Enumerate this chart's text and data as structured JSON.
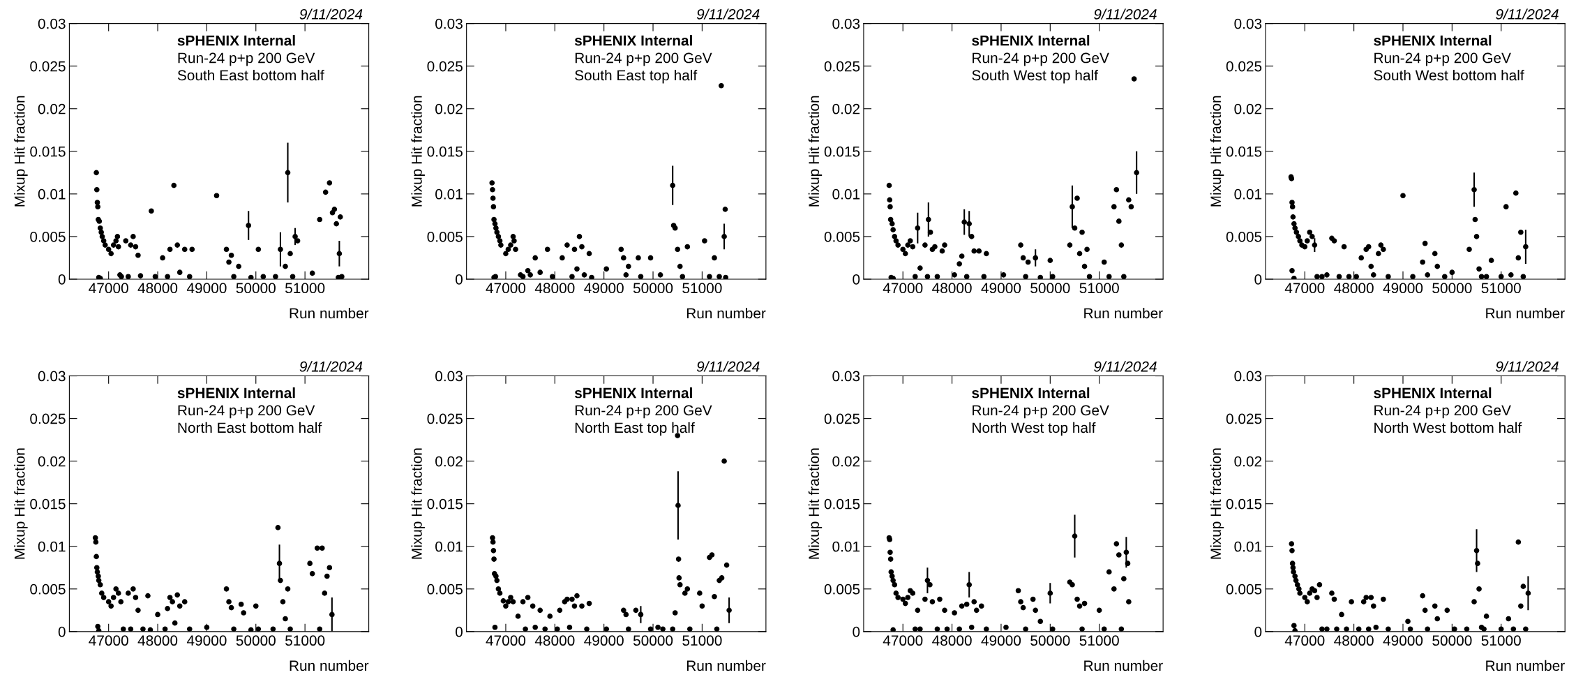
{
  "chart_data": [
    {
      "type": "scatter",
      "xlabel": "Run number",
      "ylabel": "Mixup Hit fraction",
      "marker": "circle",
      "color": "#000000",
      "annotations": [
        "9/11/2024",
        "sPHENIX Internal",
        "Run-24 p+p 200 GeV",
        "South East bottom half"
      ],
      "xlim": [
        46200,
        52300
      ],
      "xticks": [
        47000,
        48000,
        49000,
        50000,
        51000
      ],
      "ylim": [
        0,
        0.03
      ],
      "yticks": [
        0,
        0.005,
        0.01,
        0.015,
        0.02,
        0.025,
        0.03
      ],
      "x": [
        46750,
        46760,
        46770,
        46780,
        46790,
        46810,
        46830,
        46850,
        46870,
        46900,
        46930,
        46800,
        46830,
        47000,
        47050,
        47100,
        47150,
        47180,
        47200,
        47230,
        47260,
        47350,
        47400,
        47450,
        47500,
        47550,
        47600,
        47650,
        47870,
        47950,
        48100,
        48200,
        48250,
        48330,
        48400,
        48450,
        48550,
        48650,
        48700,
        49200,
        49400,
        49450,
        49500,
        49550,
        49650,
        49850,
        49900,
        50050,
        50150,
        50400,
        50500,
        50650,
        50600,
        50700,
        50750,
        50800,
        50850,
        51150,
        51300,
        51420,
        51500,
        51560,
        51600,
        51640,
        51680,
        51720,
        51750,
        51700
      ],
      "values": [
        0.0125,
        0.0105,
        0.009,
        0.0085,
        0.007,
        0.0068,
        0.006,
        0.0055,
        0.005,
        0.0045,
        0.004,
        0.0002,
        0.0001,
        0.0035,
        0.003,
        0.004,
        0.0045,
        0.005,
        0.0038,
        0.0005,
        0.0003,
        0.0045,
        0.0003,
        0.004,
        0.005,
        0.0038,
        0.0028,
        0.0004,
        0.008,
        0.0003,
        0.0025,
        0.0003,
        0.0035,
        0.011,
        0.004,
        0.0008,
        0.0035,
        0.0003,
        0.0035,
        0.0098,
        0.0035,
        0.002,
        0.0028,
        0.0003,
        0.0015,
        0.0063,
        0.0002,
        0.0035,
        0.0003,
        0.0003,
        0.0035,
        0.0125,
        0.0015,
        0.003,
        0.0003,
        0.005,
        0.0045,
        0.0007,
        0.007,
        0.0102,
        0.0113,
        0.0078,
        0.0082,
        0.0065,
        0.0002,
        0.0073,
        0.0003,
        0.003
      ],
      "errors": [
        null,
        null,
        null,
        null,
        null,
        null,
        null,
        null,
        null,
        null,
        null,
        null,
        null,
        null,
        null,
        null,
        null,
        null,
        null,
        null,
        null,
        null,
        null,
        null,
        null,
        null,
        null,
        null,
        null,
        null,
        null,
        null,
        null,
        null,
        null,
        null,
        null,
        null,
        null,
        null,
        null,
        null,
        null,
        null,
        null,
        0.0017,
        null,
        null,
        null,
        null,
        0.002,
        0.0035,
        null,
        null,
        null,
        0.001,
        null,
        null,
        null,
        null,
        null,
        null,
        null,
        null,
        null,
        null,
        null,
        0.0015
      ]
    },
    {
      "type": "scatter",
      "xlabel": "Run number",
      "ylabel": "Mixup Hit fraction",
      "marker": "circle",
      "color": "#000000",
      "annotations": [
        "9/11/2024",
        "sPHENIX Internal",
        "Run-24 p+p 200 GeV",
        "South East top half"
      ],
      "xlim": [
        46200,
        52300
      ],
      "xticks": [
        47000,
        48000,
        49000,
        50000,
        51000
      ],
      "ylim": [
        0,
        0.03
      ],
      "yticks": [
        0,
        0.005,
        0.01,
        0.015,
        0.02,
        0.025,
        0.03
      ],
      "x": [
        46720,
        46730,
        46740,
        46750,
        46760,
        46780,
        46800,
        46820,
        46850,
        46880,
        46900,
        46760,
        46790,
        47000,
        47050,
        47100,
        47150,
        47170,
        47200,
        47300,
        47350,
        47450,
        47500,
        47600,
        47700,
        47850,
        47950,
        48150,
        48250,
        48350,
        48400,
        48450,
        48500,
        48550,
        48600,
        48700,
        48750,
        49050,
        49350,
        49400,
        49450,
        49500,
        49700,
        49750,
        49950,
        50150,
        50400,
        50420,
        50450,
        50500,
        50550,
        50600,
        50700,
        51050,
        51150,
        51250,
        51350,
        51390,
        51450,
        51470,
        51480
      ],
      "values": [
        0.0113,
        0.0105,
        0.0095,
        0.0085,
        0.007,
        0.0065,
        0.006,
        0.0055,
        0.005,
        0.0045,
        0.004,
        0.0002,
        0.0003,
        0.003,
        0.0035,
        0.004,
        0.005,
        0.0045,
        0.0035,
        0.0005,
        0.0003,
        0.001,
        0.0005,
        0.0025,
        0.0008,
        0.0035,
        0.0003,
        0.0025,
        0.004,
        0.0003,
        0.0035,
        0.0012,
        0.005,
        0.0038,
        0.0005,
        0.003,
        0.0002,
        0.0012,
        0.0035,
        0.0025,
        0.0005,
        0.0015,
        0.0025,
        0.0003,
        0.0025,
        0.0005,
        0.011,
        0.0063,
        0.006,
        0.0035,
        0.0015,
        0.0003,
        0.0038,
        0.0045,
        0.0003,
        0.0025,
        0.0003,
        0.0227,
        0.005,
        0.0082,
        0.0002
      ],
      "errors": [
        null,
        null,
        null,
        null,
        null,
        null,
        null,
        null,
        null,
        null,
        null,
        null,
        null,
        null,
        null,
        null,
        null,
        null,
        null,
        null,
        null,
        null,
        null,
        null,
        null,
        null,
        null,
        null,
        null,
        null,
        null,
        null,
        null,
        null,
        null,
        null,
        null,
        null,
        null,
        null,
        null,
        null,
        null,
        null,
        null,
        null,
        0.0023,
        null,
        null,
        null,
        null,
        null,
        null,
        null,
        null,
        null,
        null,
        null,
        0.0015,
        null,
        null
      ]
    },
    {
      "type": "scatter",
      "xlabel": "Run number",
      "ylabel": "Mixup Hit fraction",
      "marker": "circle",
      "color": "#000000",
      "annotations": [
        "9/11/2024",
        "sPHENIX Internal",
        "Run-24 p+p 200 GeV",
        "South West top half"
      ],
      "xlim": [
        46200,
        52300
      ],
      "xticks": [
        47000,
        48000,
        49000,
        50000,
        51000
      ],
      "ylim": [
        0,
        0.03
      ],
      "yticks": [
        0,
        0.005,
        0.01,
        0.015,
        0.02,
        0.025,
        0.03
      ],
      "x": [
        46720,
        46730,
        46740,
        46750,
        46780,
        46800,
        46830,
        46860,
        46900,
        46760,
        46800,
        47000,
        47050,
        47100,
        47150,
        47200,
        47250,
        47300,
        47350,
        47450,
        47500,
        47520,
        47560,
        47600,
        47650,
        47700,
        47800,
        47850,
        48050,
        48150,
        48200,
        48250,
        48300,
        48350,
        48400,
        48450,
        48550,
        48650,
        48700,
        49050,
        49400,
        49450,
        49500,
        49550,
        49700,
        49800,
        50000,
        50050,
        50400,
        50450,
        50500,
        50550,
        50600,
        50650,
        50700,
        50750,
        50800,
        51100,
        51200,
        51300,
        51350,
        51400,
        51450,
        51500,
        51600,
        51650,
        51710,
        51760
      ],
      "values": [
        0.011,
        0.0093,
        0.0085,
        0.007,
        0.0065,
        0.0058,
        0.005,
        0.0045,
        0.004,
        0.0002,
        0.0001,
        0.0035,
        0.003,
        0.004,
        0.0045,
        0.0038,
        0.0003,
        0.006,
        0.0013,
        0.004,
        0.0003,
        0.007,
        0.0055,
        0.0035,
        0.0038,
        0.0003,
        0.0033,
        0.004,
        0.0005,
        0.0018,
        0.0027,
        0.0067,
        0.0003,
        0.0065,
        0.005,
        0.0033,
        0.0033,
        0.0003,
        0.003,
        0.0005,
        0.004,
        0.0025,
        0.0003,
        0.002,
        0.0025,
        0.0002,
        0.0022,
        0.0003,
        0.004,
        0.0085,
        0.006,
        0.0095,
        0.003,
        0.0055,
        0.0015,
        0.0035,
        0.0003,
        0.002,
        0.0003,
        0.0085,
        0.0105,
        0.0068,
        0.004,
        0.0003,
        0.0093,
        0.0085,
        0.0235,
        0.0125
      ],
      "errors": [
        null,
        null,
        null,
        null,
        null,
        null,
        null,
        null,
        null,
        null,
        null,
        null,
        null,
        null,
        null,
        null,
        null,
        0.0018,
        null,
        null,
        null,
        0.002,
        null,
        null,
        null,
        null,
        null,
        null,
        null,
        null,
        null,
        0.0015,
        null,
        0.0015,
        null,
        null,
        null,
        null,
        null,
        null,
        null,
        null,
        null,
        null,
        0.001,
        null,
        null,
        null,
        null,
        0.0025,
        null,
        null,
        null,
        null,
        null,
        null,
        null,
        null,
        null,
        null,
        null,
        null,
        null,
        null,
        null,
        null,
        null,
        0.0025
      ]
    },
    {
      "type": "scatter",
      "xlabel": "Run number",
      "ylabel": "Mixup Hit fraction",
      "marker": "circle",
      "color": "#000000",
      "annotations": [
        "9/11/2024",
        "sPHENIX Internal",
        "Run-24 p+p 200 GeV",
        "South West bottom half"
      ],
      "xlim": [
        46200,
        52300
      ],
      "xticks": [
        47000,
        48000,
        49000,
        50000,
        51000
      ],
      "ylim": [
        0,
        0.03
      ],
      "yticks": [
        0,
        0.005,
        0.01,
        0.015,
        0.02,
        0.025,
        0.03
      ],
      "x": [
        46720,
        46730,
        46740,
        46750,
        46760,
        46780,
        46800,
        46830,
        46870,
        46900,
        46940,
        46740,
        46780,
        47000,
        47050,
        47100,
        47150,
        47200,
        47250,
        47350,
        47450,
        47550,
        47600,
        47700,
        47800,
        47900,
        48050,
        48150,
        48250,
        48300,
        48350,
        48400,
        48500,
        48550,
        48600,
        48700,
        49000,
        49200,
        49400,
        49450,
        49500,
        49650,
        49700,
        49850,
        50000,
        50350,
        50450,
        50470,
        50500,
        50550,
        50600,
        50700,
        50800,
        51000,
        51100,
        51200,
        51300,
        51350,
        51400,
        51450,
        51500
      ],
      "values": [
        0.012,
        0.0118,
        0.009,
        0.0085,
        0.0073,
        0.0065,
        0.006,
        0.0055,
        0.005,
        0.0045,
        0.004,
        0.001,
        0.0001,
        0.0038,
        0.0045,
        0.0055,
        0.005,
        0.004,
        0.0003,
        0.0003,
        0.0005,
        0.0048,
        0.0045,
        0.0003,
        0.0038,
        0.0003,
        0.0003,
        0.0025,
        0.0035,
        0.0038,
        0.0015,
        0.0005,
        0.003,
        0.004,
        0.0035,
        0.0003,
        0.0098,
        0.0003,
        0.002,
        0.0042,
        0.0005,
        0.003,
        0.0015,
        0.0003,
        0.0008,
        0.0035,
        0.0105,
        0.007,
        0.005,
        0.0012,
        0.0003,
        0.0003,
        0.0022,
        0.0003,
        0.0085,
        0.0005,
        0.0101,
        0.0025,
        0.0055,
        0.0003,
        0.0038
      ],
      "errors": [
        null,
        null,
        null,
        null,
        null,
        null,
        null,
        null,
        null,
        null,
        null,
        null,
        null,
        null,
        null,
        null,
        null,
        0.0008,
        null,
        null,
        null,
        null,
        null,
        null,
        null,
        null,
        null,
        null,
        null,
        null,
        null,
        null,
        null,
        null,
        null,
        null,
        null,
        null,
        null,
        null,
        null,
        null,
        null,
        null,
        null,
        null,
        0.002,
        null,
        null,
        null,
        null,
        null,
        null,
        null,
        null,
        null,
        null,
        null,
        null,
        null,
        0.002
      ]
    },
    {
      "type": "scatter",
      "xlabel": "Run number",
      "ylabel": "Mixup Hit fraction",
      "marker": "circle",
      "color": "#000000",
      "annotations": [
        "9/11/2024",
        "sPHENIX Internal",
        "Run-24 p+p 200 GeV",
        "North East bottom half"
      ],
      "xlim": [
        46200,
        52300
      ],
      "xticks": [
        47000,
        48000,
        49000,
        50000,
        51000
      ],
      "ylim": [
        0,
        0.03
      ],
      "yticks": [
        0,
        0.005,
        0.01,
        0.015,
        0.02,
        0.025,
        0.03
      ],
      "x": [
        46730,
        46740,
        46750,
        46760,
        46770,
        46790,
        46800,
        46830,
        46860,
        46900,
        46780,
        46800,
        47000,
        47050,
        47100,
        47150,
        47200,
        47250,
        47300,
        47400,
        47450,
        47500,
        47550,
        47600,
        47700,
        47800,
        47850,
        48000,
        48150,
        48200,
        48250,
        48300,
        48350,
        48400,
        48450,
        48550,
        48650,
        49000,
        49400,
        49450,
        49500,
        49550,
        49700,
        49750,
        49900,
        50000,
        50050,
        50350,
        50450,
        50480,
        50500,
        50550,
        50600,
        50650,
        50700,
        51100,
        51150,
        51250,
        51300,
        51350,
        51400,
        51450,
        51500,
        51550
      ],
      "values": [
        0.011,
        0.0105,
        0.0088,
        0.0075,
        0.007,
        0.0065,
        0.006,
        0.0055,
        0.0045,
        0.004,
        0.0006,
        0.0001,
        0.0035,
        0.003,
        0.004,
        0.005,
        0.0045,
        0.0035,
        0.0003,
        0.0045,
        0.0003,
        0.005,
        0.004,
        0.0025,
        0.0003,
        0.0042,
        0.0002,
        0.002,
        0.0003,
        0.0027,
        0.004,
        0.0035,
        0.001,
        0.0043,
        0.003,
        0.0035,
        0.0003,
        0.0005,
        0.005,
        0.0035,
        0.0028,
        0.0003,
        0.0032,
        0.0022,
        0.0002,
        0.003,
        0.0003,
        0.0003,
        0.0122,
        0.008,
        0.006,
        0.0035,
        0.0015,
        0.005,
        0.0003,
        0.008,
        0.0068,
        0.0098,
        0.0003,
        0.0098,
        0.0045,
        0.0065,
        0.0075,
        0.002
      ],
      "errors": [
        null,
        null,
        null,
        null,
        null,
        null,
        null,
        null,
        null,
        null,
        null,
        null,
        null,
        null,
        null,
        null,
        null,
        null,
        null,
        null,
        null,
        null,
        null,
        null,
        null,
        null,
        null,
        null,
        null,
        null,
        null,
        null,
        null,
        null,
        null,
        null,
        null,
        null,
        null,
        null,
        null,
        null,
        null,
        null,
        null,
        null,
        null,
        null,
        null,
        0.0022,
        null,
        null,
        null,
        null,
        null,
        null,
        null,
        null,
        null,
        null,
        null,
        null,
        null,
        0.002
      ]
    },
    {
      "type": "scatter",
      "xlabel": "Run number",
      "ylabel": "Mixup Hit fraction",
      "marker": "circle",
      "color": "#000000",
      "annotations": [
        "9/11/2024",
        "sPHENIX Internal",
        "Run-24 p+p 200 GeV",
        "North East top half"
      ],
      "xlim": [
        46200,
        52300
      ],
      "xticks": [
        47000,
        48000,
        49000,
        50000,
        51000
      ],
      "ylim": [
        0,
        0.03
      ],
      "yticks": [
        0,
        0.005,
        0.01,
        0.015,
        0.02,
        0.025,
        0.03
      ],
      "x": [
        46730,
        46740,
        46750,
        46760,
        46770,
        46800,
        46820,
        46850,
        46880,
        46780,
        46950,
        47000,
        47050,
        47100,
        47150,
        47250,
        47350,
        47400,
        47450,
        47550,
        47600,
        47700,
        47800,
        47900,
        48050,
        48100,
        48200,
        48250,
        48300,
        48350,
        48400,
        48450,
        48550,
        48650,
        48700,
        49050,
        49400,
        49450,
        49500,
        49650,
        49750,
        49950,
        50100,
        50200,
        50400,
        50450,
        50500,
        50510,
        50520,
        50530,
        50550,
        50650,
        50700,
        50750,
        50950,
        51000,
        51150,
        51200,
        51250,
        51300,
        51350,
        51400,
        51450,
        51500,
        51550
      ],
      "values": [
        0.011,
        0.0105,
        0.0095,
        0.0085,
        0.0068,
        0.0065,
        0.006,
        0.005,
        0.0045,
        0.0005,
        0.0036,
        0.003,
        0.0035,
        0.004,
        0.0035,
        0.0018,
        0.0035,
        0.0003,
        0.004,
        0.003,
        0.0005,
        0.0025,
        0.0003,
        0.0018,
        0.0003,
        0.0025,
        0.0035,
        0.0038,
        0.0005,
        0.0038,
        0.003,
        0.0042,
        0.003,
        0.0003,
        0.0033,
        0.0003,
        0.0025,
        0.002,
        0.0003,
        0.0025,
        0.002,
        0.0003,
        0.0005,
        0.0003,
        0.0003,
        0.0022,
        0.023,
        0.0148,
        0.0085,
        0.0063,
        0.0055,
        0.0045,
        0.005,
        0.0003,
        0.0045,
        0.003,
        0.0087,
        0.009,
        0.0041,
        0.0003,
        0.006,
        0.0063,
        0.02,
        0.0078,
        0.0025
      ],
      "errors": [
        null,
        null,
        null,
        null,
        null,
        null,
        null,
        null,
        null,
        null,
        null,
        null,
        null,
        null,
        null,
        null,
        null,
        null,
        null,
        null,
        null,
        null,
        null,
        null,
        null,
        null,
        null,
        null,
        null,
        null,
        null,
        null,
        null,
        null,
        null,
        null,
        null,
        null,
        null,
        null,
        0.001,
        null,
        null,
        null,
        null,
        null,
        null,
        0.004,
        null,
        null,
        null,
        null,
        null,
        null,
        null,
        null,
        null,
        null,
        null,
        null,
        null,
        null,
        null,
        null,
        0.0015
      ]
    },
    {
      "type": "scatter",
      "xlabel": "Run number",
      "ylabel": "Mixup Hit fraction",
      "marker": "circle",
      "color": "#000000",
      "annotations": [
        "9/11/2024",
        "sPHENIX Internal",
        "Run-24 p+p 200 GeV",
        "North West top half"
      ],
      "xlim": [
        46200,
        52300
      ],
      "xticks": [
        47000,
        48000,
        49000,
        50000,
        51000
      ],
      "ylim": [
        0,
        0.03
      ],
      "yticks": [
        0,
        0.005,
        0.01,
        0.015,
        0.02,
        0.025,
        0.03
      ],
      "x": [
        46720,
        46730,
        46740,
        46750,
        46760,
        46780,
        46800,
        46830,
        46860,
        46900,
        46800,
        47000,
        47050,
        47100,
        47150,
        47200,
        47250,
        47300,
        47350,
        47450,
        47500,
        47550,
        47600,
        47700,
        47750,
        47850,
        47900,
        48050,
        48150,
        48200,
        48300,
        48350,
        48400,
        48450,
        48500,
        48600,
        48700,
        49100,
        49350,
        49400,
        49450,
        49500,
        49650,
        49700,
        49800,
        50000,
        50050,
        50400,
        50450,
        50500,
        50550,
        50600,
        50650,
        50700,
        51000,
        51100,
        51200,
        51300,
        51350,
        51400,
        51450,
        51500,
        51550,
        51580,
        51600
      ],
      "values": [
        0.011,
        0.0108,
        0.0093,
        0.0085,
        0.007,
        0.0065,
        0.006,
        0.0055,
        0.0045,
        0.004,
        0.0002,
        0.0038,
        0.0033,
        0.004,
        0.0048,
        0.0045,
        0.0003,
        0.0025,
        0.0003,
        0.0038,
        0.006,
        0.0055,
        0.0035,
        0.0003,
        0.0038,
        0.0025,
        0.0003,
        0.0022,
        0.0003,
        0.003,
        0.0032,
        0.0055,
        0.0005,
        0.0035,
        0.0025,
        0.003,
        0.0003,
        0.0005,
        0.0048,
        0.0035,
        0.0028,
        0.0003,
        0.0038,
        0.0025,
        0.0012,
        0.0045,
        0.0003,
        0.0058,
        0.0055,
        0.0112,
        0.0038,
        0.003,
        0.0003,
        0.0033,
        0.0025,
        0.0003,
        0.007,
        0.005,
        0.0103,
        0.009,
        0.0003,
        0.0062,
        0.0093,
        0.008,
        0.0035
      ],
      "errors": [
        null,
        null,
        null,
        null,
        null,
        null,
        null,
        null,
        null,
        null,
        null,
        null,
        null,
        null,
        null,
        null,
        null,
        null,
        null,
        null,
        0.0015,
        null,
        null,
        null,
        null,
        null,
        null,
        null,
        null,
        null,
        null,
        0.0015,
        null,
        null,
        null,
        null,
        null,
        null,
        null,
        null,
        null,
        null,
        null,
        null,
        null,
        0.0012,
        null,
        null,
        null,
        0.0025,
        null,
        null,
        null,
        null,
        null,
        null,
        null,
        null,
        null,
        null,
        null,
        null,
        0.0018,
        null,
        null
      ]
    },
    {
      "type": "scatter",
      "xlabel": "Run number",
      "ylabel": "Mixup Hit fraction",
      "marker": "circle",
      "color": "#000000",
      "annotations": [
        "9/11/2024",
        "sPHENIX Internal",
        "Run-24 p+p 200 GeV",
        "North West bottom half"
      ],
      "xlim": [
        46200,
        52300
      ],
      "xticks": [
        47000,
        48000,
        49000,
        50000,
        51000
      ],
      "ylim": [
        0,
        0.03
      ],
      "yticks": [
        0,
        0.005,
        0.01,
        0.015,
        0.02,
        0.025,
        0.03
      ],
      "x": [
        46730,
        46740,
        46750,
        46760,
        46770,
        46800,
        46820,
        46850,
        46880,
        46900,
        46780,
        46800,
        47000,
        47050,
        47100,
        47150,
        47200,
        47250,
        47300,
        47350,
        47450,
        47550,
        47600,
        47650,
        47750,
        47850,
        47950,
        48100,
        48200,
        48250,
        48300,
        48350,
        48400,
        48450,
        48600,
        48700,
        49100,
        49150,
        49400,
        49450,
        49500,
        49650,
        49700,
        49900,
        50050,
        50300,
        50450,
        50500,
        50520,
        50550,
        50600,
        50650,
        50700,
        51000,
        51150,
        51250,
        51350,
        51400,
        51450,
        51500,
        51550
      ],
      "values": [
        0.0103,
        0.0095,
        0.008,
        0.0075,
        0.007,
        0.0065,
        0.006,
        0.0055,
        0.005,
        0.0045,
        0.0007,
        0.0001,
        0.004,
        0.0035,
        0.0045,
        0.005,
        0.0048,
        0.004,
        0.0055,
        0.0003,
        0.0003,
        0.0045,
        0.0038,
        0.0003,
        0.002,
        0.0003,
        0.0035,
        0.0003,
        0.0035,
        0.004,
        0.0003,
        0.004,
        0.003,
        0.0005,
        0.0038,
        0.0003,
        0.0012,
        0.0003,
        0.0042,
        0.0025,
        0.0003,
        0.003,
        0.0015,
        0.0025,
        0.0003,
        0.0003,
        0.0035,
        0.0095,
        0.008,
        0.005,
        0.0005,
        0.0003,
        0.0018,
        0.0003,
        0.0015,
        0.0003,
        0.0105,
        0.003,
        0.0053,
        0.0003,
        0.0045
      ],
      "errors": [
        null,
        null,
        null,
        null,
        null,
        null,
        null,
        null,
        null,
        null,
        null,
        null,
        null,
        null,
        null,
        null,
        null,
        null,
        null,
        null,
        null,
        null,
        null,
        null,
        null,
        null,
        null,
        null,
        null,
        null,
        null,
        null,
        null,
        null,
        null,
        null,
        null,
        null,
        null,
        null,
        null,
        null,
        null,
        null,
        null,
        null,
        null,
        0.0025,
        null,
        null,
        null,
        null,
        null,
        null,
        null,
        null,
        null,
        null,
        null,
        null,
        0.002
      ]
    }
  ]
}
